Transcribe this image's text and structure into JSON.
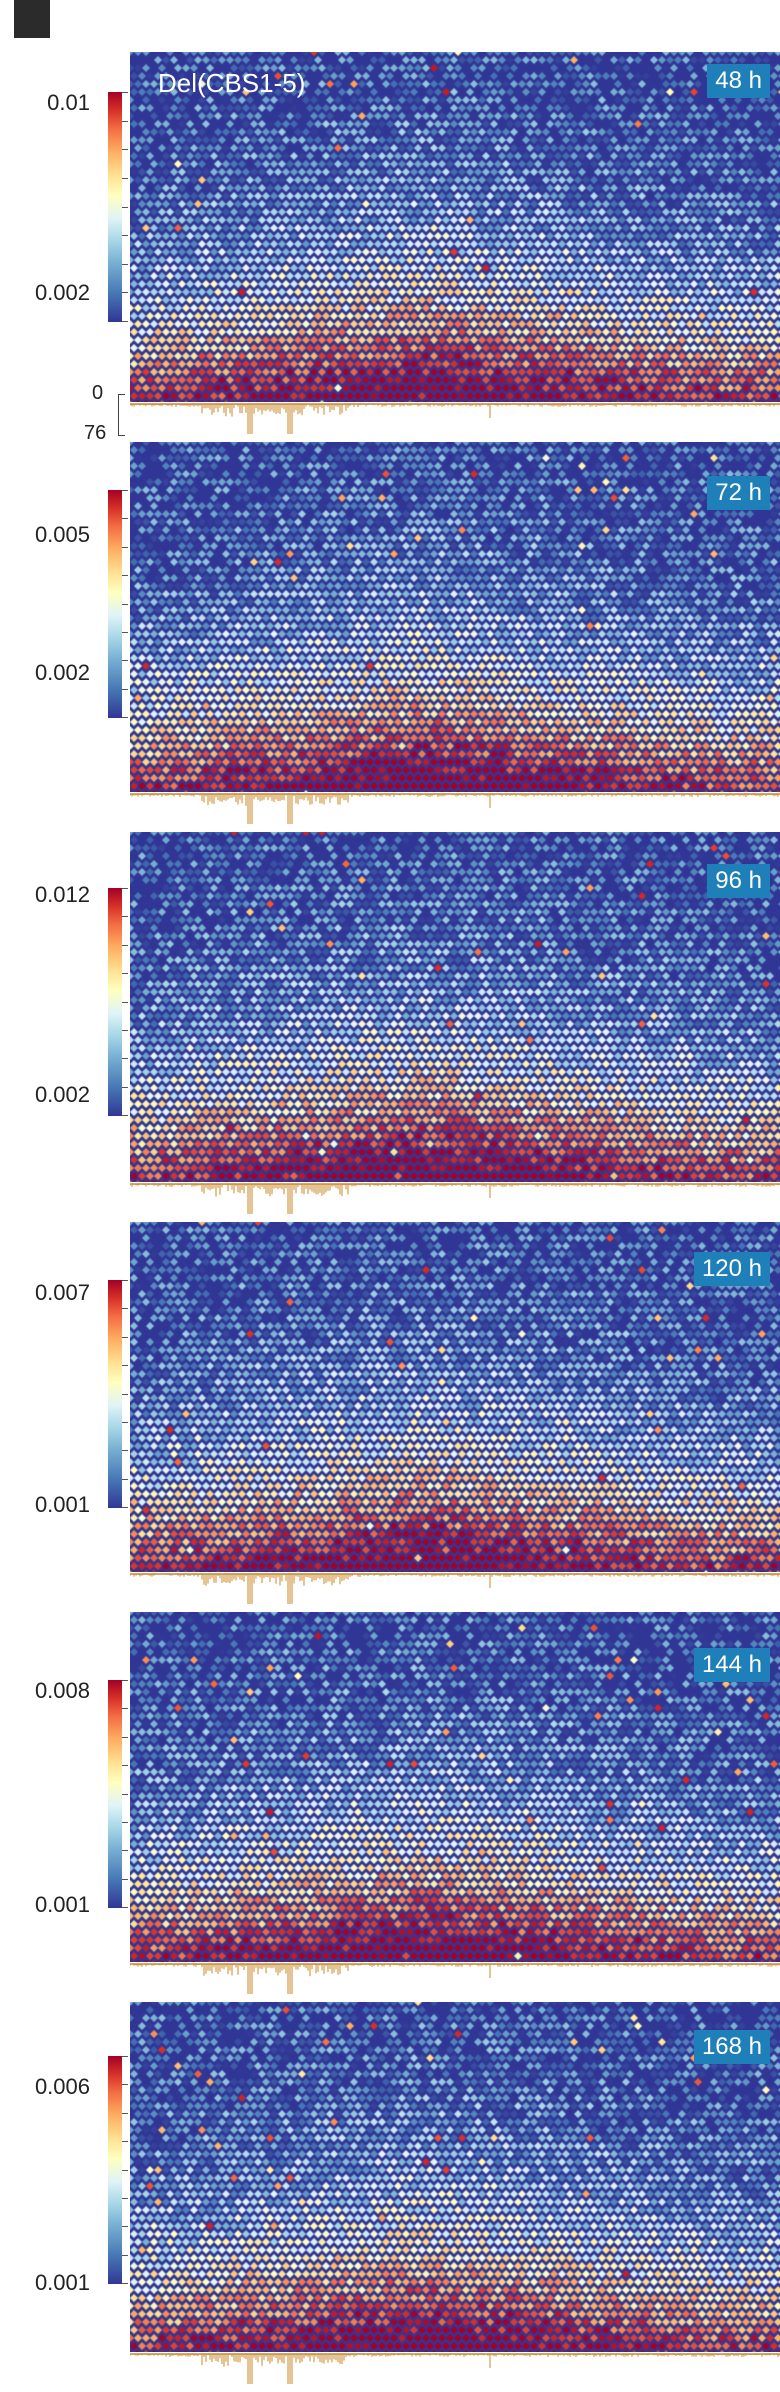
{
  "figure": {
    "condition_label": "Del(CBS1-5)",
    "track_scale": {
      "min_label": "0",
      "max_label": "76"
    }
  },
  "colors": {
    "colormap": [
      "#313695",
      "#4575b4",
      "#74add1",
      "#abd9e9",
      "#e0f3f8",
      "#ffffbf",
      "#fee090",
      "#fdae61",
      "#f46d43",
      "#d73027",
      "#a50026"
    ],
    "badge_bg": "#1f7fb8",
    "track": "#c98a2b"
  },
  "chart_data": [
    {
      "type": "heatmap",
      "time_label": "48 h",
      "colorbar": {
        "max_label": "0.01",
        "min_label": "0.002",
        "range": [
          0.001,
          0.01
        ]
      }
    },
    {
      "type": "heatmap",
      "time_label": "72 h",
      "colorbar": {
        "max_label": "0.005",
        "min_label": "0.002",
        "range": [
          0.001,
          0.006
        ]
      }
    },
    {
      "type": "heatmap",
      "time_label": "96 h",
      "colorbar": {
        "max_label": "0.012",
        "min_label": "0.002",
        "range": [
          0.001,
          0.013
        ]
      }
    },
    {
      "type": "heatmap",
      "time_label": "120 h",
      "colorbar": {
        "max_label": "0.007",
        "min_label": "0.001",
        "range": [
          0.001,
          0.007
        ]
      }
    },
    {
      "type": "heatmap",
      "time_label": "144 h",
      "colorbar": {
        "max_label": "0.008",
        "min_label": "0.001",
        "range": [
          0.001,
          0.008
        ]
      }
    },
    {
      "type": "heatmap",
      "time_label": "168 h",
      "colorbar": {
        "max_label": "0.006",
        "min_label": "0.001",
        "range": [
          0.001,
          0.007
        ]
      }
    }
  ]
}
